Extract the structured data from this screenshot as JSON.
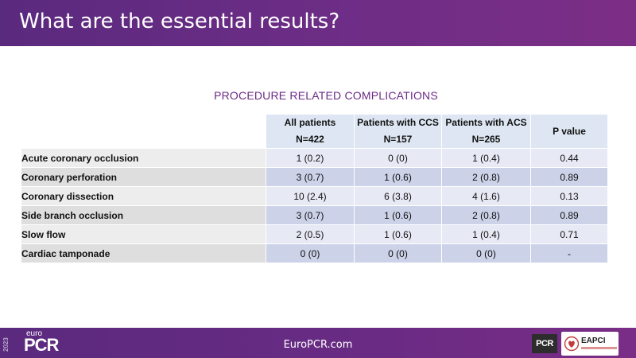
{
  "header": {
    "title": "What are the essential results?"
  },
  "section": {
    "title": "PROCEDURE RELATED COMPLICATIONS"
  },
  "table": {
    "columns": [
      {
        "line1": "All patients",
        "line2": "N=422"
      },
      {
        "line1": "Patients with CCS",
        "line2": "N=157"
      },
      {
        "line1": "Patients with ACS",
        "line2": "N=265"
      }
    ],
    "p_header": "P value",
    "rows": [
      {
        "label": "Acute coronary occlusion",
        "all": "1 (0.2)",
        "ccs": "0 (0)",
        "acs": "1 (0.4)",
        "p": "0.44"
      },
      {
        "label": "Coronary perforation",
        "all": "3 (0.7)",
        "ccs": "1 (0.6)",
        "acs": "2 (0.8)",
        "p": "0.89"
      },
      {
        "label": "Coronary dissection",
        "all": "10 (2.4)",
        "ccs": "6 (3.8)",
        "acs": "4 (1.6)",
        "p": "0.13"
      },
      {
        "label": "Side branch occlusion",
        "all": "3 (0.7)",
        "ccs": "1 (0.6)",
        "acs": "2 (0.8)",
        "p": "0.89"
      },
      {
        "label": "Slow flow",
        "all": "2 (0.5)",
        "ccs": "1 (0.6)",
        "acs": "1 (0.4)",
        "p": "0.71"
      },
      {
        "label": "Cardiac tamponade",
        "all": "0 (0)",
        "ccs": "0 (0)",
        "acs": "0 (0)",
        "p": "-"
      }
    ]
  },
  "footer": {
    "year": "2023",
    "logo_euro": "euro",
    "logo_pcr": "PCR",
    "site": "EuroPCR.com",
    "pcr_badge": "PCR",
    "eapci_badge": "EAPCI"
  },
  "colors": {
    "brand_purple": "#6b2a86",
    "header_cell": "#dde6f2",
    "row_light": "#e7eaf5",
    "row_dark": "#ccd2e8"
  }
}
